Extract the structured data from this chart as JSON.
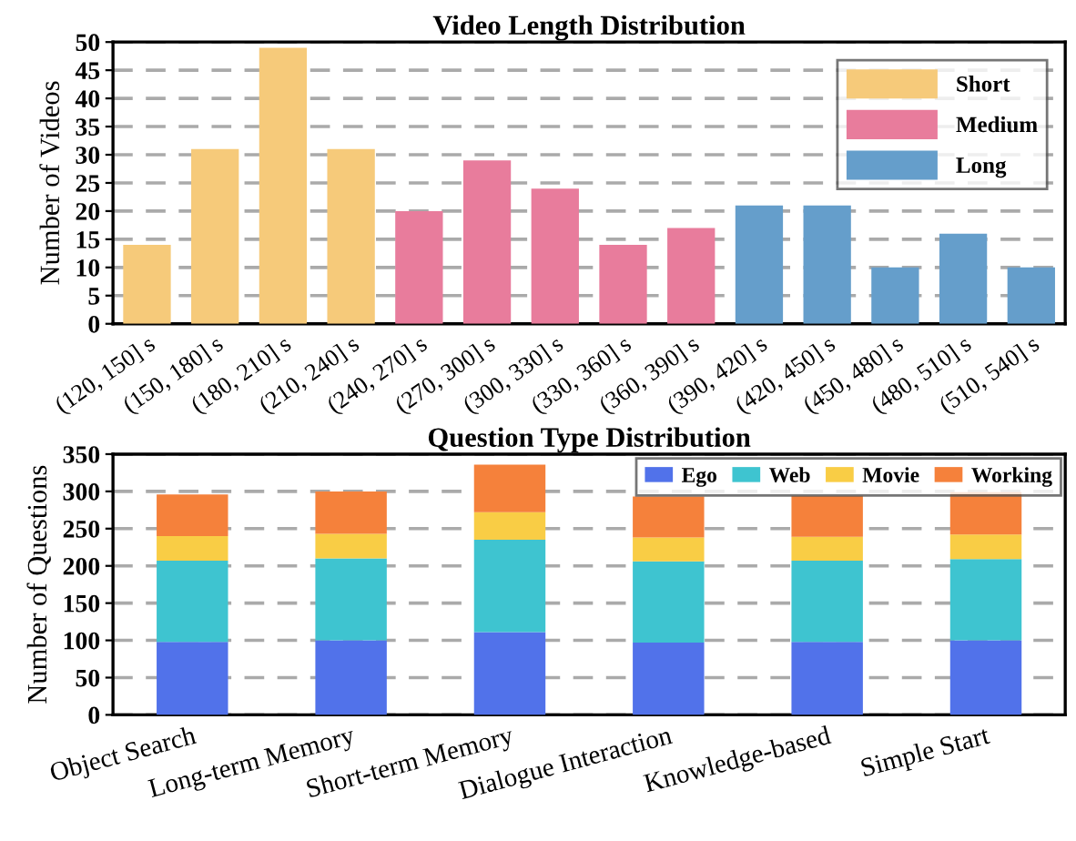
{
  "chart_data": [
    {
      "type": "bar",
      "title": "Video Length Distribution",
      "ylabel": "Number of Videos",
      "categories": [
        "(120, 150] s",
        "(150, 180] s",
        "(180, 210] s",
        "(210, 240] s",
        "(240, 270] s",
        "(270, 300] s",
        "(300, 330] s",
        "(330, 360] s",
        "(360, 390] s",
        "(390, 420] s",
        "(420, 450] s",
        "(450, 480] s",
        "(480, 510] s",
        "(510, 540] s"
      ],
      "series": [
        {
          "name": "Short",
          "color": "#f6ca7a",
          "values": [
            14,
            31,
            49,
            31,
            null,
            null,
            null,
            null,
            null,
            null,
            null,
            null,
            null,
            null
          ]
        },
        {
          "name": "Medium",
          "color": "#e87c9c",
          "values": [
            null,
            null,
            null,
            null,
            20,
            29,
            24,
            14,
            17,
            null,
            null,
            null,
            null,
            null
          ]
        },
        {
          "name": "Long",
          "color": "#659ecb",
          "values": [
            null,
            null,
            null,
            null,
            null,
            null,
            null,
            null,
            null,
            21,
            21,
            10,
            16,
            10
          ]
        }
      ],
      "ylim": [
        0,
        50
      ],
      "yticks": [
        0,
        5,
        10,
        15,
        20,
        25,
        30,
        35,
        40,
        45,
        50
      ],
      "grid": "y",
      "legend": "top right"
    },
    {
      "type": "bar",
      "title": "Question Type Distribution",
      "ylabel": "Number of Questions",
      "stacked": true,
      "categories": [
        "Object Search",
        "Long-term Memory",
        "Short-term Memory",
        "Dialogue Interaction",
        "Knowledge-based",
        "Simple Start"
      ],
      "series": [
        {
          "name": "Ego",
          "color": "#5172ea",
          "values": [
            98,
            100,
            111,
            97,
            98,
            100
          ]
        },
        {
          "name": "Web",
          "color": "#3ec4d0",
          "values": [
            109,
            110,
            124,
            109,
            109,
            109
          ]
        },
        {
          "name": "Movie",
          "color": "#f9cd45",
          "values": [
            33,
            33,
            37,
            32,
            32,
            33
          ]
        },
        {
          "name": "Working",
          "color": "#f5813b",
          "values": [
            56,
            57,
            64,
            55,
            55,
            57
          ]
        }
      ],
      "ylim": [
        0,
        350
      ],
      "yticks": [
        0,
        50,
        100,
        150,
        200,
        250,
        300,
        350
      ],
      "grid": "y",
      "legend": "top right"
    }
  ]
}
